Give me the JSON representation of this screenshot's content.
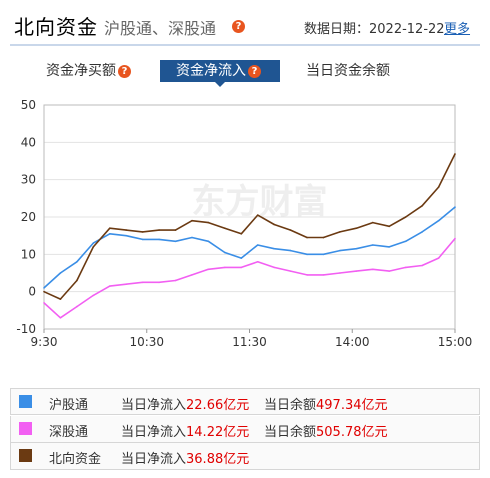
{
  "header": {
    "title": "北向资金",
    "subtitle": "沪股通、深股通",
    "data_date_label": "数据日期：2022-12-22",
    "more_link": "更多"
  },
  "tabs": [
    {
      "label": "资金净买额",
      "has_help": true,
      "active": false
    },
    {
      "label": "资金净流入",
      "has_help": true,
      "active": true
    },
    {
      "label": "当日资金余额",
      "has_help": false,
      "active": false
    }
  ],
  "watermark": "东方财富",
  "colors": {
    "accent": "#1f5592",
    "help_badge": "#e8551f",
    "shanghai": "#3a8ee6",
    "shenzhen": "#f25ff2",
    "northbound": "#6b3a12",
    "value_red": "#e00000"
  },
  "legend": [
    {
      "name": "沪股通",
      "flow_label": "当日净流入",
      "flow_value": "22.66亿元",
      "balance_label": "当日余额",
      "balance_value": "497.34亿元",
      "color": "#3a8ee6"
    },
    {
      "name": "深股通",
      "flow_label": "当日净流入",
      "flow_value": "14.22亿元",
      "balance_label": "当日余额",
      "balance_value": "505.78亿元",
      "color": "#f25ff2"
    },
    {
      "name": "北向资金",
      "flow_label": "当日净流入",
      "flow_value": "36.88亿元",
      "balance_label": "",
      "balance_value": "",
      "color": "#6b3a12"
    }
  ],
  "chart_data": {
    "type": "line",
    "xlabel": "",
    "ylabel": "",
    "ylim": [
      -10,
      50
    ],
    "yticks": [
      -10,
      0,
      10,
      20,
      30,
      40,
      50
    ],
    "xtick_labels": [
      "9:30",
      "10:30",
      "11:30",
      "14:00",
      "15:00"
    ],
    "grid": "horizontal",
    "x": [
      "9:30",
      "9:40",
      "9:50",
      "10:00",
      "10:10",
      "10:20",
      "10:30",
      "10:40",
      "10:50",
      "11:00",
      "11:10",
      "11:20",
      "11:30",
      "13:10",
      "13:20",
      "13:30",
      "13:40",
      "13:50",
      "14:00",
      "14:10",
      "14:20",
      "14:30",
      "14:40",
      "14:50",
      "14:55",
      "15:00"
    ],
    "series": [
      {
        "name": "沪股通",
        "color": "#3a8ee6",
        "values": [
          1,
          5,
          8,
          13,
          15.5,
          15,
          14,
          14,
          13.5,
          14.5,
          13.5,
          10.5,
          9,
          12.5,
          11.5,
          11,
          10,
          10,
          11,
          11.5,
          12.5,
          12,
          13.5,
          16,
          19,
          22.66
        ]
      },
      {
        "name": "深股通",
        "color": "#f25ff2",
        "values": [
          -3,
          -7,
          -4,
          -1,
          1.5,
          2,
          2.5,
          2.5,
          3,
          4.5,
          6,
          6.5,
          6.5,
          8,
          6.5,
          5.5,
          4.5,
          4.5,
          5,
          5.5,
          6,
          5.5,
          6.5,
          7,
          9,
          14.22
        ]
      },
      {
        "name": "北向资金",
        "color": "#6b3a12",
        "values": [
          0,
          -2,
          3,
          12,
          17,
          16.5,
          16,
          16.5,
          16.5,
          19,
          18.5,
          17,
          15.5,
          20.5,
          18,
          16.5,
          14.5,
          14.5,
          16,
          17,
          18.5,
          17.5,
          20,
          23,
          28,
          36.88
        ]
      }
    ]
  }
}
